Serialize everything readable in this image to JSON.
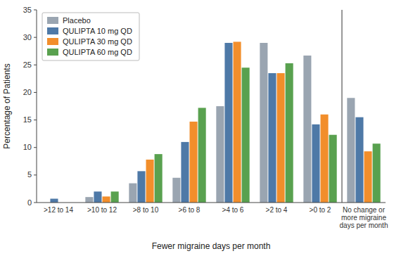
{
  "chart_data": {
    "type": "bar",
    "xlabel": "Fewer migraine days per month",
    "ylabel": "Percentage of Patients",
    "categories": [
      ">12 to 14",
      ">10 to 12",
      ">8 to 10",
      ">6 to 8",
      ">4 to 6",
      ">2 to 4",
      ">0 to 2",
      "No change or\nmore migraine\ndays per month"
    ],
    "series": [
      {
        "name": "Placebo",
        "color": "#9aa5b1",
        "values": [
          0.0,
          1.0,
          3.5,
          4.5,
          17.5,
          29.0,
          26.7,
          19.0
        ]
      },
      {
        "name": "QULIPTA 10 mg QD",
        "color": "#4e79a7",
        "values": [
          0.7,
          2.0,
          5.7,
          11.0,
          29.0,
          23.5,
          14.2,
          15.5
        ]
      },
      {
        "name": "QULIPTA 30 mg QD",
        "color": "#f28e2b",
        "values": [
          0.0,
          1.1,
          7.8,
          14.7,
          29.2,
          23.5,
          16.0,
          9.3
        ]
      },
      {
        "name": "QULIPTA 60 mg QD",
        "color": "#59a14f",
        "values": [
          0.0,
          2.0,
          8.8,
          17.2,
          24.5,
          25.3,
          12.3,
          10.7
        ]
      }
    ],
    "ylim": [
      0,
      35
    ],
    "yticks": [
      0,
      5,
      10,
      15,
      20,
      25,
      30,
      35
    ],
    "grid": false,
    "legend": "upper left"
  }
}
